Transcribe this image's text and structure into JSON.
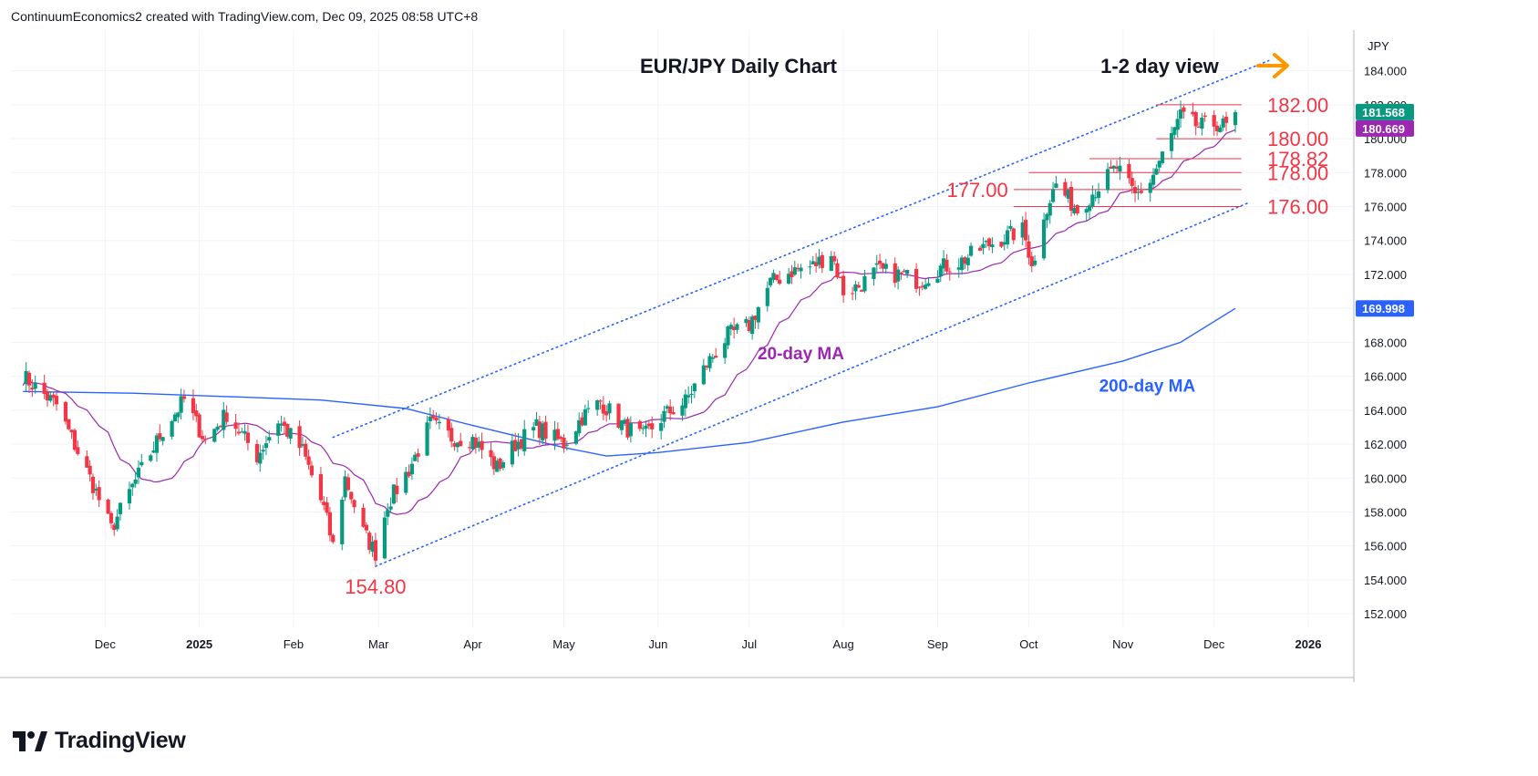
{
  "header": {
    "text": "ContinuumEconomics2 created with TradingView.com, Dec 09, 2025 08:58 UTC+8"
  },
  "footer": {
    "brand": "TradingView"
  },
  "colors": {
    "up": "#089981",
    "down": "#f23645",
    "ma20": "#9c27b0",
    "ma200": "#2962ff",
    "level": "#f23645",
    "arrow": "#ff9800",
    "channel": "#2962ff",
    "grid": "#f0f3fa"
  },
  "chart_data": {
    "type": "candlestick",
    "title": "EUR/JPY Daily Chart",
    "view_label": "1-2 day view",
    "currency": "JPY",
    "x_ticks": [
      "Dec",
      "2025",
      "Feb",
      "Mar",
      "Apr",
      "May",
      "Jun",
      "Jul",
      "Aug",
      "Sep",
      "Oct",
      "Nov",
      "Dec",
      "2026"
    ],
    "x_tick_dates": [
      "2024-12-01",
      "2025-01-01",
      "2025-02-01",
      "2025-03-01",
      "2025-04-01",
      "2025-05-01",
      "2025-06-01",
      "2025-07-01",
      "2025-08-01",
      "2025-09-01",
      "2025-10-01",
      "2025-11-01",
      "2025-12-01",
      "2026-01-01"
    ],
    "y_ticks": [
      152,
      154,
      156,
      158,
      160,
      162,
      164,
      166,
      168,
      170,
      172,
      174,
      176,
      178,
      180,
      182,
      184
    ],
    "y_tick_labels": [
      "152.000",
      "154.000",
      "156.000",
      "158.000",
      "160.000",
      "162.000",
      "164.000",
      "166.000",
      "168.000",
      "170.000",
      "172.000",
      "174.000",
      "176.000",
      "178.000",
      "180.000",
      "182.000",
      "184.000"
    ],
    "ylim": [
      151.2,
      186.4
    ],
    "price_tags": [
      {
        "label": "181.568",
        "value": 181.568,
        "color": "#089981"
      },
      {
        "label": "180.669",
        "value": 180.669,
        "color": "#9c27b0"
      },
      {
        "label": "169.998",
        "value": 169.998,
        "color": "#2962ff"
      }
    ],
    "levels": [
      {
        "label": "182.00",
        "value": 182.0,
        "from": "2025-11-12",
        "label_side": "right"
      },
      {
        "label": "180.00",
        "value": 180.0,
        "from": "2025-11-12",
        "label_side": "right"
      },
      {
        "label": "178.82",
        "value": 178.82,
        "from": "2025-10-21",
        "label_side": "right"
      },
      {
        "label": "178.00",
        "value": 178.0,
        "from": "2025-10-01",
        "label_side": "right"
      },
      {
        "label": "177.00",
        "value": 177.0,
        "from": "2025-09-26",
        "label_side": "left"
      },
      {
        "label": "176.00",
        "value": 176.0,
        "from": "2025-09-26",
        "label_side": "right"
      }
    ],
    "low_label": {
      "label": "154.80",
      "date": "2025-02-28",
      "value": 154.8
    },
    "channel_upper": {
      "start": [
        "2025-02-14",
        162.4
      ],
      "end": [
        "2025-12-19",
        184.6
      ]
    },
    "channel_lower": {
      "start": [
        "2025-02-28",
        154.8
      ],
      "end": [
        "2025-12-12",
        176.2
      ]
    },
    "annotations": [
      {
        "text": "20-day MA",
        "date": "2025-07-18",
        "value": 167.0,
        "color": "#9c27b0"
      },
      {
        "text": "200-day MA",
        "date": "2025-11-09",
        "value": 165.1,
        "color": "#2962ff"
      }
    ],
    "anchors": [
      {
        "date": "2024-11-04",
        "price": 166.0
      },
      {
        "date": "2024-11-15",
        "price": 164.3
      },
      {
        "date": "2024-11-27",
        "price": 159.6
      },
      {
        "date": "2024-12-03",
        "price": 157.0
      },
      {
        "date": "2024-12-10",
        "price": 159.5
      },
      {
        "date": "2024-12-20",
        "price": 162.8
      },
      {
        "date": "2024-12-27",
        "price": 164.6
      },
      {
        "date": "2025-01-03",
        "price": 162.2
      },
      {
        "date": "2025-01-10",
        "price": 163.8
      },
      {
        "date": "2025-01-20",
        "price": 161.3
      },
      {
        "date": "2025-01-27",
        "price": 163.4
      },
      {
        "date": "2025-02-04",
        "price": 161.6
      },
      {
        "date": "2025-02-11",
        "price": 158.2
      },
      {
        "date": "2025-02-14",
        "price": 156.0
      },
      {
        "date": "2025-02-18",
        "price": 160.0
      },
      {
        "date": "2025-02-24",
        "price": 156.8
      },
      {
        "date": "2025-02-28",
        "price": 155.6
      },
      {
        "date": "2025-03-04",
        "price": 158.5
      },
      {
        "date": "2025-03-11",
        "price": 160.5
      },
      {
        "date": "2025-03-18",
        "price": 163.2
      },
      {
        "date": "2025-03-25",
        "price": 162.4
      },
      {
        "date": "2025-04-01",
        "price": 162.3
      },
      {
        "date": "2025-04-09",
        "price": 160.6
      },
      {
        "date": "2025-04-15",
        "price": 162.0
      },
      {
        "date": "2025-04-22",
        "price": 163.0
      },
      {
        "date": "2025-05-01",
        "price": 162.0
      },
      {
        "date": "2025-05-07",
        "price": 163.6
      },
      {
        "date": "2025-05-13",
        "price": 164.5
      },
      {
        "date": "2025-05-21",
        "price": 163.0
      },
      {
        "date": "2025-05-27",
        "price": 162.4
      },
      {
        "date": "2025-06-03",
        "price": 163.7
      },
      {
        "date": "2025-06-10",
        "price": 164.5
      },
      {
        "date": "2025-06-17",
        "price": 166.7
      },
      {
        "date": "2025-06-24",
        "price": 168.4
      },
      {
        "date": "2025-07-01",
        "price": 169.0
      },
      {
        "date": "2025-07-08",
        "price": 171.5
      },
      {
        "date": "2025-07-15",
        "price": 172.2
      },
      {
        "date": "2025-07-22",
        "price": 172.5
      },
      {
        "date": "2025-07-28",
        "price": 173.3
      },
      {
        "date": "2025-08-01",
        "price": 171.0
      },
      {
        "date": "2025-08-06",
        "price": 171.3
      },
      {
        "date": "2025-08-12",
        "price": 172.2
      },
      {
        "date": "2025-08-19",
        "price": 172.0
      },
      {
        "date": "2025-08-26",
        "price": 171.6
      },
      {
        "date": "2025-09-02",
        "price": 172.4
      },
      {
        "date": "2025-09-09",
        "price": 172.8
      },
      {
        "date": "2025-09-16",
        "price": 173.6
      },
      {
        "date": "2025-09-23",
        "price": 174.2
      },
      {
        "date": "2025-09-29",
        "price": 174.6
      },
      {
        "date": "2025-10-02",
        "price": 172.8
      },
      {
        "date": "2025-10-03",
        "price": 172.7
      },
      {
        "date": "2025-10-06",
        "price": 175.6
      },
      {
        "date": "2025-10-10",
        "price": 177.3
      },
      {
        "date": "2025-10-17",
        "price": 175.8
      },
      {
        "date": "2025-10-23",
        "price": 177.0
      },
      {
        "date": "2025-10-30",
        "price": 178.3
      },
      {
        "date": "2025-11-05",
        "price": 176.6
      },
      {
        "date": "2025-11-10",
        "price": 177.5
      },
      {
        "date": "2025-11-14",
        "price": 179.0
      },
      {
        "date": "2025-11-20",
        "price": 181.3
      },
      {
        "date": "2025-11-26",
        "price": 180.7
      },
      {
        "date": "2025-12-02",
        "price": 180.9
      },
      {
        "date": "2025-12-05",
        "price": 180.7
      },
      {
        "date": "2025-12-08",
        "price": 181.57
      }
    ],
    "ma200": [
      {
        "date": "2024-11-04",
        "value": 165.1
      },
      {
        "date": "2024-12-10",
        "value": 165.0
      },
      {
        "date": "2025-01-10",
        "value": 164.8
      },
      {
        "date": "2025-02-10",
        "value": 164.6
      },
      {
        "date": "2025-03-10",
        "value": 164.1
      },
      {
        "date": "2025-04-01",
        "value": 163.1
      },
      {
        "date": "2025-05-01",
        "value": 161.8
      },
      {
        "date": "2025-05-15",
        "value": 161.3
      },
      {
        "date": "2025-06-01",
        "value": 161.5
      },
      {
        "date": "2025-07-01",
        "value": 162.1
      },
      {
        "date": "2025-08-01",
        "value": 163.3
      },
      {
        "date": "2025-09-01",
        "value": 164.2
      },
      {
        "date": "2025-10-01",
        "value": 165.6
      },
      {
        "date": "2025-11-01",
        "value": 166.9
      },
      {
        "date": "2025-11-20",
        "value": 168.0
      },
      {
        "date": "2025-12-08",
        "value": 169.998
      }
    ]
  }
}
